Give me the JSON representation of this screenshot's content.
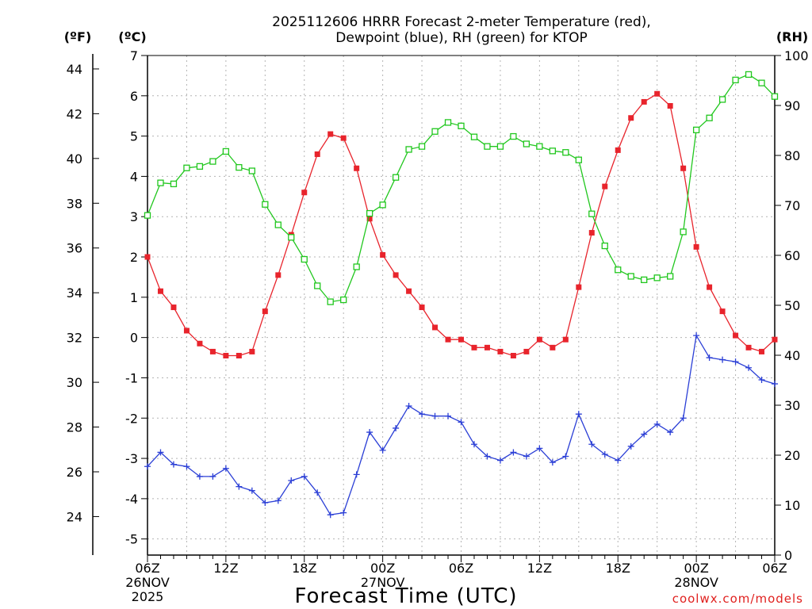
{
  "chart_data": {
    "type": "line",
    "title_line1": "2025112606 HRRR Forecast 2-meter Temperature (red),",
    "title_line2": "Dewpoint (blue), RH (green) for KTOP",
    "xlabel": "Forecast Time (UTC)",
    "credit": "coolwx.com/models",
    "units": {
      "fahrenheit": "(ºF)",
      "celsius": "(ºC)",
      "rh": "(RH)"
    },
    "x_hours": [
      0,
      1,
      2,
      3,
      4,
      5,
      6,
      7,
      8,
      9,
      10,
      11,
      12,
      13,
      14,
      15,
      16,
      17,
      18,
      19,
      20,
      21,
      22,
      23,
      24,
      25,
      26,
      27,
      28,
      29,
      30,
      31,
      32,
      33,
      34,
      35,
      36,
      37,
      38,
      39,
      40,
      41,
      42,
      43,
      44,
      45,
      46,
      47,
      48
    ],
    "xlim": [
      0,
      48
    ],
    "x_ticks": [
      {
        "hour": 0,
        "label": "06Z",
        "date1": "26NOV",
        "date2": "2025"
      },
      {
        "hour": 6,
        "label": "12Z"
      },
      {
        "hour": 12,
        "label": "18Z"
      },
      {
        "hour": 18,
        "label": "00Z",
        "date1": "27NOV"
      },
      {
        "hour": 24,
        "label": "06Z"
      },
      {
        "hour": 30,
        "label": "12Z"
      },
      {
        "hour": 36,
        "label": "18Z"
      },
      {
        "hour": 42,
        "label": "00Z",
        "date1": "28NOV"
      },
      {
        "hour": 48,
        "label": "06Z"
      }
    ],
    "celsius_axis": {
      "ylim": [
        -5.4,
        7
      ],
      "ticks": [
        "-5",
        "-4",
        "-3",
        "-2",
        "-1",
        "0",
        "1",
        "2",
        "3",
        "4",
        "5",
        "6",
        "7"
      ]
    },
    "fahrenheit_axis": {
      "ticks": [
        "24",
        "26",
        "28",
        "30",
        "32",
        "34",
        "36",
        "38",
        "40",
        "42",
        "44"
      ]
    },
    "rh_axis": {
      "ylim": [
        0,
        100
      ],
      "ticks": [
        "0",
        "10",
        "20",
        "30",
        "40",
        "50",
        "60",
        "70",
        "80",
        "90",
        "100"
      ]
    },
    "series": [
      {
        "name": "Temperature",
        "unit": "C",
        "color": "#e8242c",
        "marker": "filled-square",
        "values": [
          2.0,
          1.15,
          0.75,
          0.17,
          -0.15,
          -0.35,
          -0.45,
          -0.45,
          -0.35,
          0.65,
          1.55,
          2.55,
          3.6,
          4.55,
          5.05,
          4.95,
          4.2,
          2.95,
          2.05,
          1.55,
          1.15,
          0.75,
          0.25,
          -0.05,
          -0.05,
          -0.25,
          -0.25,
          -0.35,
          -0.45,
          -0.35,
          -0.05,
          -0.25,
          -0.05,
          1.25,
          2.6,
          3.75,
          4.65,
          5.45,
          5.85,
          6.05,
          5.75,
          4.2,
          2.25,
          1.25,
          0.65,
          0.05,
          -0.25,
          -0.35,
          -0.05
        ]
      },
      {
        "name": "Dewpoint",
        "unit": "C",
        "color": "#2b3fd6",
        "marker": "plus",
        "values": [
          -3.2,
          -2.85,
          -3.15,
          -3.2,
          -3.45,
          -3.45,
          -3.25,
          -3.7,
          -3.8,
          -4.1,
          -4.05,
          -3.55,
          -3.45,
          -3.85,
          -4.4,
          -4.35,
          -3.4,
          -2.35,
          -2.8,
          -2.25,
          -1.7,
          -1.9,
          -1.95,
          -1.95,
          -2.1,
          -2.65,
          -2.95,
          -3.05,
          -2.85,
          -2.95,
          -2.75,
          -3.1,
          -2.95,
          -1.9,
          -2.65,
          -2.9,
          -3.05,
          -2.7,
          -2.4,
          -2.15,
          -2.35,
          -2.0,
          0.05,
          -0.5,
          -0.55,
          -0.6,
          -0.75,
          -1.05,
          -1.15
        ]
      },
      {
        "name": "RH",
        "unit": "%",
        "color": "#21c71e",
        "marker": "open-square",
        "values": [
          68,
          74.5,
          74.3,
          77.5,
          77.8,
          78.8,
          80.8,
          77.6,
          76.9,
          70.2,
          66.1,
          63.6,
          59.2,
          53.9,
          50.7,
          51.1,
          57.7,
          68.4,
          70.1,
          75.6,
          81.2,
          81.8,
          84.8,
          86.6,
          85.9,
          83.7,
          81.8,
          81.8,
          83.8,
          82.3,
          81.8,
          80.9,
          80.6,
          79.1,
          68.3,
          61.9,
          57.1,
          55.8,
          55.1,
          55.5,
          55.8,
          64.7,
          85.1,
          87.5,
          91.2,
          95.1,
          96.2,
          94.5,
          91.8
        ]
      }
    ]
  }
}
